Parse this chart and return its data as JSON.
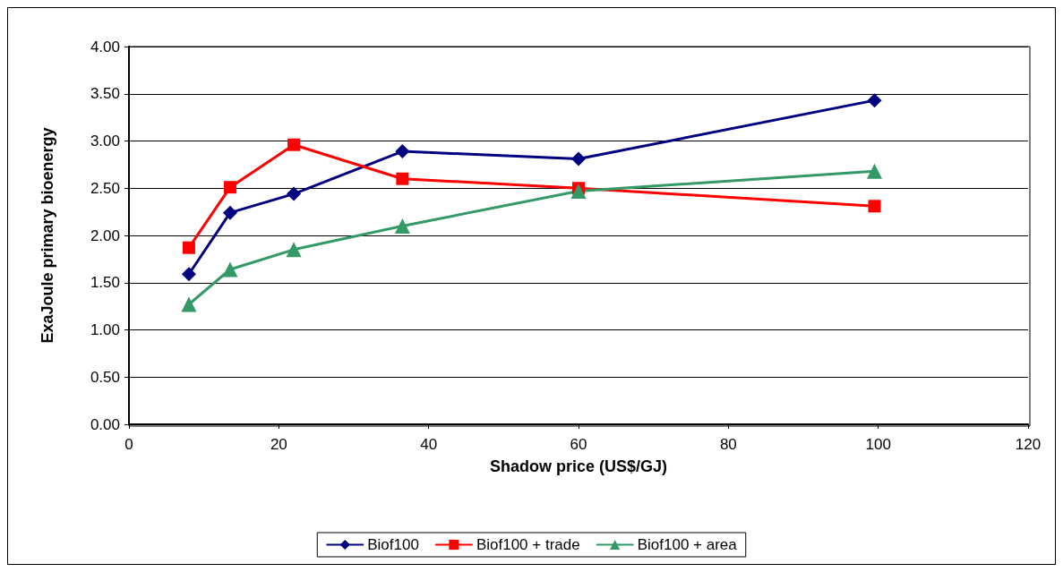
{
  "chart_data": {
    "type": "line",
    "xlabel": "Shadow price (US$/GJ)",
    "ylabel": "ExaJoule primary bioenergy",
    "x": [
      8,
      13.5,
      22,
      36.5,
      60,
      99.5
    ],
    "series": [
      {
        "name": "Biof100",
        "color": "#000080",
        "marker": "diamond",
        "values": [
          1.59,
          2.24,
          2.44,
          2.89,
          2.81,
          3.43
        ]
      },
      {
        "name": "Biof100 + trade",
        "color": "#ff0000",
        "marker": "square",
        "values": [
          1.87,
          2.51,
          2.96,
          2.6,
          2.5,
          2.31
        ]
      },
      {
        "name": "Biof100 + area",
        "color": "#339966",
        "marker": "triangle",
        "values": [
          1.27,
          1.64,
          1.85,
          2.1,
          2.47,
          2.68
        ]
      }
    ],
    "xlim": [
      0,
      120
    ],
    "xticks": [
      0,
      20,
      40,
      60,
      80,
      100,
      120
    ],
    "ylim": [
      0,
      4
    ],
    "yticks": [
      {
        "value": 0,
        "label": "0.00"
      },
      {
        "value": 0.5,
        "label": "0.50"
      },
      {
        "value": 1,
        "label": "1.00"
      },
      {
        "value": 1.5,
        "label": "1.50"
      },
      {
        "value": 2,
        "label": "2.00"
      },
      {
        "value": 2.5,
        "label": "2.50"
      },
      {
        "value": 3,
        "label": "3.00"
      },
      {
        "value": 3.5,
        "label": "3.50"
      },
      {
        "value": 4,
        "label": "4.00"
      }
    ],
    "grid": "y",
    "legend": "bottom",
    "line_style": "solid"
  }
}
